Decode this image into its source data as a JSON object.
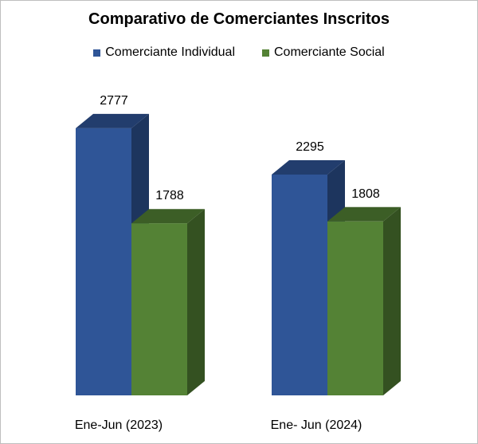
{
  "chart_data": {
    "type": "bar",
    "title": "Comparativo de Comerciantes Inscritos",
    "categories": [
      "Ene-Jun (2023)",
      "Ene- Jun (2024)"
    ],
    "series": [
      {
        "name": "Comerciante Individual",
        "values": [
          2777,
          2295
        ],
        "color": "#2f5597"
      },
      {
        "name": "Comerciante Social",
        "values": [
          1788,
          1808
        ],
        "color": "#548235"
      }
    ],
    "legend_position": "top",
    "grid": false,
    "data_labels": true,
    "ylim": [
      0,
      3200
    ]
  }
}
